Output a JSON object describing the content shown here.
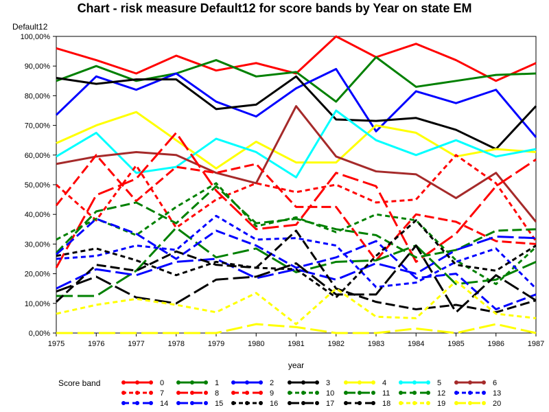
{
  "chart_data": {
    "type": "line",
    "title": "Chart - risk measure Default12 for score bands by Year on state EM",
    "ylabel": "Default12",
    "xlabel": "year",
    "ylim": [
      0,
      100
    ],
    "yticks": [
      "0,00%",
      "10,00%",
      "20,00%",
      "30,00%",
      "40,00%",
      "50,00%",
      "60,00%",
      "70,00%",
      "80,00%",
      "90,00%",
      "100,00%"
    ],
    "x": [
      1975,
      1976,
      1977,
      1978,
      1979,
      1980,
      1981,
      1982,
      1983,
      1984,
      1985,
      1986,
      1987
    ],
    "legend_title": "Score band",
    "legend_position": "bottom",
    "series": [
      {
        "name": "0",
        "color": "#ff0000",
        "dash": "solid",
        "values": [
          96,
          92,
          87.5,
          93.5,
          88.5,
          91,
          87.5,
          100,
          93,
          97.5,
          92,
          85,
          91
        ]
      },
      {
        "name": "1",
        "color": "#008000",
        "dash": "solid",
        "values": [
          85,
          90,
          85,
          87.5,
          92,
          86.5,
          88,
          78,
          93,
          83,
          85,
          87,
          87.5
        ]
      },
      {
        "name": "2",
        "color": "#0000ff",
        "dash": "solid",
        "values": [
          73.5,
          86.5,
          82,
          87.5,
          78,
          73,
          82.5,
          89,
          68,
          81.5,
          77.5,
          82,
          66
        ]
      },
      {
        "name": "3",
        "color": "#000000",
        "dash": "solid",
        "values": [
          86,
          84,
          85.5,
          85.5,
          75.5,
          77,
          86.5,
          72,
          71.5,
          72.5,
          68.5,
          62,
          76.5
        ]
      },
      {
        "name": "4",
        "color": "#ffff00",
        "dash": "solid",
        "values": [
          64,
          70,
          74.5,
          65,
          55.5,
          64.5,
          57.5,
          57.5,
          70,
          67.5,
          59.5,
          62,
          61
        ]
      },
      {
        "name": "5",
        "color": "#00ffff",
        "dash": "solid",
        "values": [
          59.5,
          67.5,
          54,
          56,
          65.5,
          61,
          52.5,
          75,
          65,
          60,
          65,
          59.5,
          62
        ]
      },
      {
        "name": "6",
        "color": "#a52a2a",
        "dash": "solid",
        "values": [
          57,
          59.5,
          61,
          60,
          54,
          50.5,
          76.5,
          59.5,
          54.5,
          53.5,
          45.5,
          54,
          37.5
        ]
      },
      {
        "name": "7",
        "color": "#ff0000",
        "dash": "short",
        "values": [
          50,
          38,
          56.5,
          35.5,
          45,
          50.5,
          47.5,
          50,
          44,
          45,
          60,
          50.5,
          31
        ]
      },
      {
        "name": "8",
        "color": "#ff0000",
        "dash": "long",
        "values": [
          22,
          46.5,
          52,
          67.5,
          48,
          35,
          36.5,
          54,
          49.5,
          24,
          33.5,
          49.5,
          58.5
        ]
      },
      {
        "name": "9",
        "color": "#ff0000",
        "dash": "medium",
        "values": [
          43,
          60,
          44.5,
          56,
          54,
          57,
          42.5,
          42.5,
          24.5,
          40,
          37.5,
          31,
          30
        ]
      },
      {
        "name": "10",
        "color": "#008000",
        "dash": "short",
        "values": [
          31.5,
          38.5,
          33,
          42.5,
          50.5,
          36,
          39,
          34,
          40,
          38,
          24.5,
          16.5,
          29
        ]
      },
      {
        "name": "11",
        "color": "#008000",
        "dash": "long",
        "values": [
          12.5,
          12.5,
          21,
          35.5,
          25.5,
          28.5,
          20.5,
          24,
          24.5,
          29.5,
          16.5,
          18,
          24
        ]
      },
      {
        "name": "12",
        "color": "#008000",
        "dash": "medium",
        "values": [
          27,
          41,
          44,
          37,
          49.5,
          37,
          38.5,
          35,
          33,
          25.5,
          28,
          34.5,
          35
        ]
      },
      {
        "name": "13",
        "color": "#0000ff",
        "dash": "short",
        "values": [
          25,
          26,
          29.5,
          28,
          39.5,
          31.5,
          32,
          29.5,
          15.5,
          17,
          24,
          28.5,
          15
        ]
      },
      {
        "name": "14",
        "color": "#0000ff",
        "dash": "medium",
        "values": [
          26.5,
          38.5,
          33.5,
          25,
          34.5,
          29.5,
          22,
          25.5,
          31,
          18.5,
          20,
          8,
          13
        ]
      },
      {
        "name": "15",
        "color": "#0000ff",
        "dash": "long",
        "values": [
          15,
          21.5,
          19.5,
          24,
          25,
          18.5,
          21.5,
          18,
          23.5,
          20,
          28,
          32.5,
          32
        ]
      },
      {
        "name": "16",
        "color": "#000000",
        "dash": "short",
        "values": [
          26,
          28.5,
          24.5,
          19.5,
          24,
          22,
          21.5,
          12,
          26,
          38,
          23,
          21,
          29.5
        ]
      },
      {
        "name": "17",
        "color": "#000000",
        "dash": "long",
        "values": [
          14,
          19,
          12,
          10,
          18,
          19,
          23.5,
          13,
          13,
          29.5,
          7,
          19.5,
          11
        ]
      },
      {
        "name": "18",
        "color": "#000000",
        "dash": "medium",
        "values": [
          10.5,
          23,
          21,
          27.5,
          23,
          22,
          34.5,
          15,
          10.5,
          8,
          9.5,
          7,
          11
        ]
      },
      {
        "name": "19",
        "color": "#ffff00",
        "dash": "short",
        "values": [
          6.5,
          9.5,
          11.5,
          9.5,
          7,
          13.5,
          3,
          15,
          5.5,
          5,
          17.5,
          6.5,
          5
        ]
      },
      {
        "name": "20",
        "color": "#ffff00",
        "dash": "long",
        "values": [
          0,
          0,
          0,
          0,
          0,
          3,
          2,
          0,
          0,
          1.5,
          0,
          3,
          0
        ]
      }
    ]
  }
}
